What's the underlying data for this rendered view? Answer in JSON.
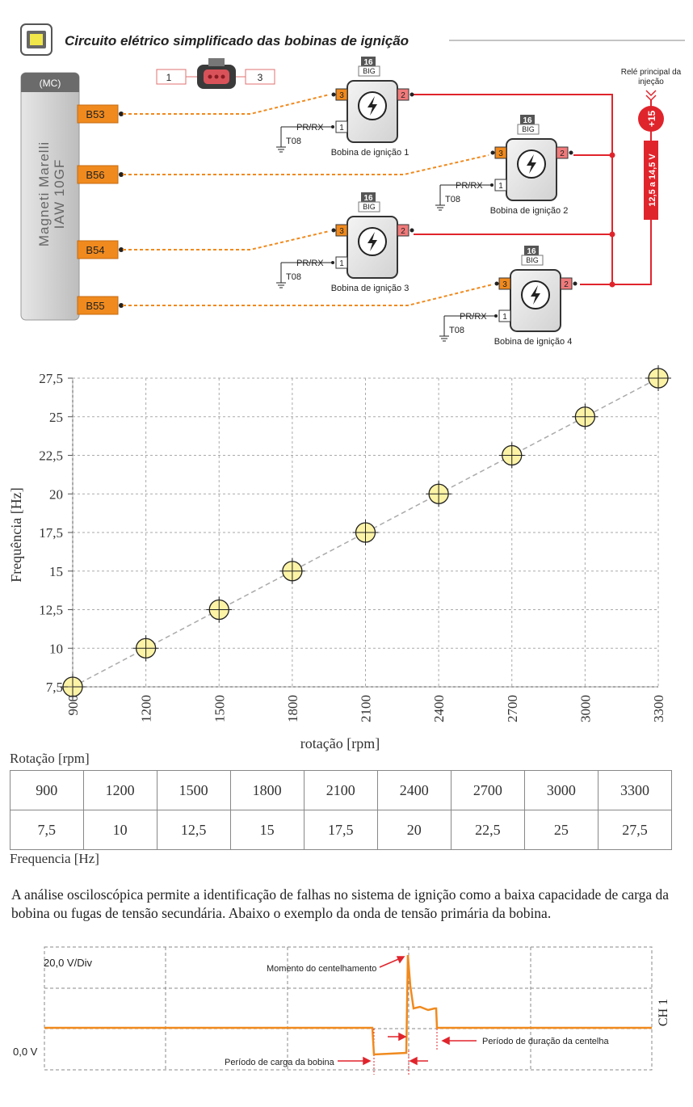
{
  "header": {
    "title": "Circuito elétrico simplificado das bobinas de ignição",
    "icon": "ecu-chip-icon"
  },
  "ecu": {
    "tag": "(MC)",
    "line1": "Magneti Marelli",
    "line2": "IAW 10GF",
    "pins": [
      "B53",
      "B56",
      "B54",
      "B55"
    ]
  },
  "connector": {
    "left_label": "1",
    "right_label": "3"
  },
  "coils": [
    {
      "name": "Bobina de ignição 1",
      "fuse": "16",
      "fuse_label": "BIG",
      "pin_in": "3",
      "pin_out": "2",
      "pin_gnd": "1",
      "gnd_label": "PR/RX",
      "gnd_ref": "T08"
    },
    {
      "name": "Bobina de ignição 2",
      "fuse": "16",
      "fuse_label": "BIG",
      "pin_in": "3",
      "pin_out": "2",
      "pin_gnd": "1",
      "gnd_label": "PR/RX",
      "gnd_ref": "T08"
    },
    {
      "name": "Bobina de ignição 3",
      "fuse": "16",
      "fuse_label": "BIG",
      "pin_in": "3",
      "pin_out": "2",
      "pin_gnd": "1",
      "gnd_label": "PR/RX",
      "gnd_ref": "T08"
    },
    {
      "name": "Bobina de ignição 4",
      "fuse": "16",
      "fuse_label": "BIG",
      "pin_in": "3",
      "pin_out": "2",
      "pin_gnd": "1",
      "gnd_label": "PR/RX",
      "gnd_ref": "T08"
    }
  ],
  "relay": {
    "label_line1": "Relé principal da",
    "label_line2": "injeção",
    "supply": "+15",
    "voltage": "12,5 a 14,5 V"
  },
  "chart_data": {
    "type": "scatter",
    "title": "",
    "xlabel": "rotação [rpm]",
    "ylabel": "Frequência [Hz]",
    "x": [
      900,
      1200,
      1500,
      1800,
      2100,
      2400,
      2700,
      3000,
      3300
    ],
    "y": [
      7.5,
      10,
      12.5,
      15,
      17.5,
      20,
      22.5,
      25,
      27.5
    ],
    "x_ticks": [
      "900",
      "1200",
      "1500",
      "1800",
      "2100",
      "2400",
      "2700",
      "3000",
      "3300"
    ],
    "y_ticks": [
      "7,5",
      "10",
      "12,5",
      "15",
      "17,5",
      "20",
      "22,5",
      "25",
      "27,5"
    ],
    "xlim": [
      900,
      3300
    ],
    "ylim": [
      7.5,
      27.5
    ],
    "grid": true,
    "marker_color": "#fdf3a6",
    "trend_line": "dashed"
  },
  "table": {
    "row1_label": "Rotação [rpm]",
    "row2_label": "Frequencia [Hz]",
    "rpm": [
      "900",
      "1200",
      "1500",
      "1800",
      "2100",
      "2400",
      "2700",
      "3000",
      "3300"
    ],
    "hz": [
      "7,5",
      "10",
      "12,5",
      "15",
      "17,5",
      "20",
      "22,5",
      "25",
      "27,5"
    ]
  },
  "paragraph": "A análise osciloscópica permite a identificação de falhas no sistema de ignição como a baixa capacidade de carga da bobina ou fugas de tensão secundária.  Abaixo o exemplo da onda de tensão primária da bobina.",
  "scope": {
    "scale": "20,0 V/Div",
    "zero": "0,0 V",
    "channel": "CH 1",
    "annotation_spark": "Momento do centelhamento",
    "annotation_charge": "Período de carga da bobina",
    "annotation_duration": "Período de duração da centelha",
    "trace_color": "#f08a1e"
  },
  "colors": {
    "orange": "#f08a1e",
    "red": "#e0242c",
    "ecu_gray": "#c9c9c9",
    "dark": "#333333"
  }
}
